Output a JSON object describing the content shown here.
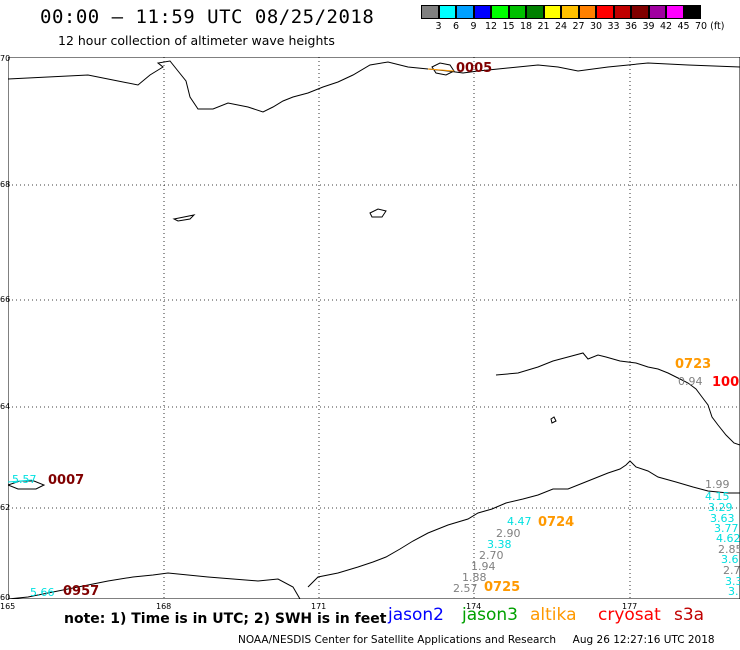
{
  "title": "00:00 – 11:59 UTC 08/25/2018",
  "subtitle": "12 hour collection of altimeter wave heights",
  "legend": {
    "colors": [
      "#808080",
      "#00ffff",
      "#00a0ff",
      "#0000ff",
      "#00ff00",
      "#00c000",
      "#008000",
      "#ffff00",
      "#ffc000",
      "#ff8000",
      "#ff0000",
      "#c00000",
      "#800000",
      "#a000a0",
      "#ff00ff",
      "#000000"
    ],
    "labels": [
      "3",
      "6",
      "9",
      "12",
      "15",
      "18",
      "21",
      "24",
      "27",
      "30",
      "33",
      "36",
      "39",
      "42",
      "45",
      "70 (ft)"
    ]
  },
  "axes": {
    "lat_labels": [
      "70",
      "68",
      "66",
      "64",
      "62",
      "60"
    ],
    "lon_labels": [
      "165",
      "168",
      "171",
      "174",
      "177"
    ]
  },
  "observations": [
    {
      "text": "0005",
      "color": "#800000"
    },
    {
      "text": "0723",
      "color": "#ff9900"
    },
    {
      "text": "100",
      "color": "#ff0000"
    },
    {
      "text": "0.94",
      "color": "#808080"
    },
    {
      "text": "0007",
      "color": "#800000"
    },
    {
      "text": "5.57",
      "color": "#00e0e0"
    },
    {
      "text": "0724",
      "color": "#ff9900"
    },
    {
      "text": "4.47",
      "color": "#00e0e0"
    },
    {
      "text": "2.90",
      "color": "#808080"
    },
    {
      "text": "3.38",
      "color": "#00e0e0"
    },
    {
      "text": "2.70",
      "color": "#808080"
    },
    {
      "text": "1.94",
      "color": "#808080"
    },
    {
      "text": "1.88",
      "color": "#808080"
    },
    {
      "text": "2.57",
      "color": "#808080"
    },
    {
      "text": "0725",
      "color": "#ff9900"
    },
    {
      "text": "5.66",
      "color": "#00e0e0"
    },
    {
      "text": "0957",
      "color": "#800000"
    },
    {
      "text": "1.99",
      "color": "#808080"
    },
    {
      "text": "4.15",
      "color": "#00e0e0"
    },
    {
      "text": "3.29",
      "color": "#00e0e0"
    },
    {
      "text": "3.63",
      "color": "#00e0e0"
    },
    {
      "text": "3.77",
      "color": "#00e0e0"
    },
    {
      "text": "4.62",
      "color": "#00e0e0"
    },
    {
      "text": "2.85",
      "color": "#808080"
    },
    {
      "text": "3.6",
      "color": "#00e0e0"
    },
    {
      "text": "2.7",
      "color": "#808080"
    },
    {
      "text": "3.3",
      "color": "#00e0e0"
    },
    {
      "text": "3.",
      "color": "#00e0e0"
    }
  ],
  "note": "note: 1) Time is in UTC; 2) SWH is in feet",
  "satellites": [
    {
      "name": "jason2",
      "color": "#0000ff"
    },
    {
      "name": "jason3",
      "color": "#00a000"
    },
    {
      "name": "altika",
      "color": "#ff9900"
    },
    {
      "name": "cryosat",
      "color": "#ff0000"
    },
    {
      "name": "s3a",
      "color": "#c00000"
    }
  ],
  "footer": "NOAA/NESDIS Center for Satellite Applications and Research     Aug 26 12:27:16 UTC 2018"
}
